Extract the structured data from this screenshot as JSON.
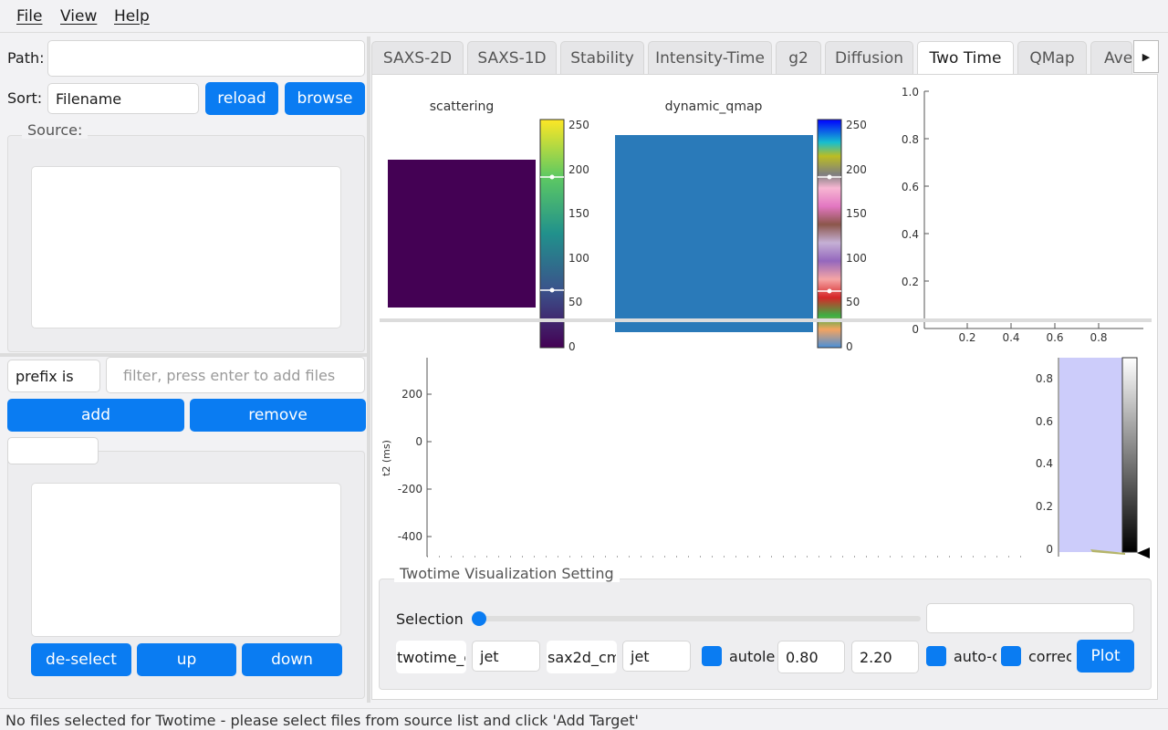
{
  "menu": {
    "file": "File",
    "view": "View",
    "help": "Help"
  },
  "left": {
    "path_label": "Path:",
    "path_value": "",
    "sort_label": "Sort:",
    "sort_value": "Filename",
    "reload": "reload",
    "browse": "browse",
    "source_label": "Source:",
    "filter_mode": "prefix is",
    "filter_placeholder": "filter, press enter to add files",
    "add": "add",
    "remove": "remove",
    "target_label": "",
    "deselect": "de-select",
    "up": "up",
    "down": "down"
  },
  "tabs": [
    "SAXS-2D",
    "SAXS-1D",
    "Stability",
    "Intensity-Time",
    "g2",
    "Diffusion",
    "Two Time",
    "QMap",
    "Aver"
  ],
  "active_tab": "Two Time",
  "plots": {
    "scattering_title": "scattering",
    "qmap_title": "dynamic_qmap",
    "colorbar_ticks": [
      "250",
      "200",
      "150",
      "100",
      "50",
      "0"
    ],
    "right_y_ticks": [
      "1.0",
      "0.8",
      "0.6",
      "0.4",
      "0.2",
      "0"
    ],
    "right_x_ticks": [
      "0.2",
      "0.4",
      "0.6",
      "0.8"
    ],
    "twotime_y_label": "t2 (ms)",
    "twotime_y_ticks": [
      "200",
      "0",
      "-200",
      "-400"
    ],
    "side_y_ticks": [
      "0.8",
      "0.6",
      "0.4",
      "0.2",
      "0"
    ]
  },
  "settings": {
    "title": "Twotime Visualization Setting",
    "selection_label": "Selection",
    "selection_level": 0,
    "twotime_cmap_label": "twotime_c",
    "twotime_cmap": "jet",
    "saxs2d_cmap_label": "sax2d_cm",
    "saxs2d_cmap": "jet",
    "autolevel_label": "autole",
    "vmin": "0.80",
    "vmax": "2.20",
    "autocrop_label": "auto-c",
    "correct_label": "correc",
    "plot": "Plot"
  },
  "status": "No files selected for Twotime - please select files from source list and click 'Add Target'",
  "colors": {
    "accent": "#0a7cf2",
    "viridis_low": "#440154",
    "qmap_fill": "#2a7ab9"
  }
}
